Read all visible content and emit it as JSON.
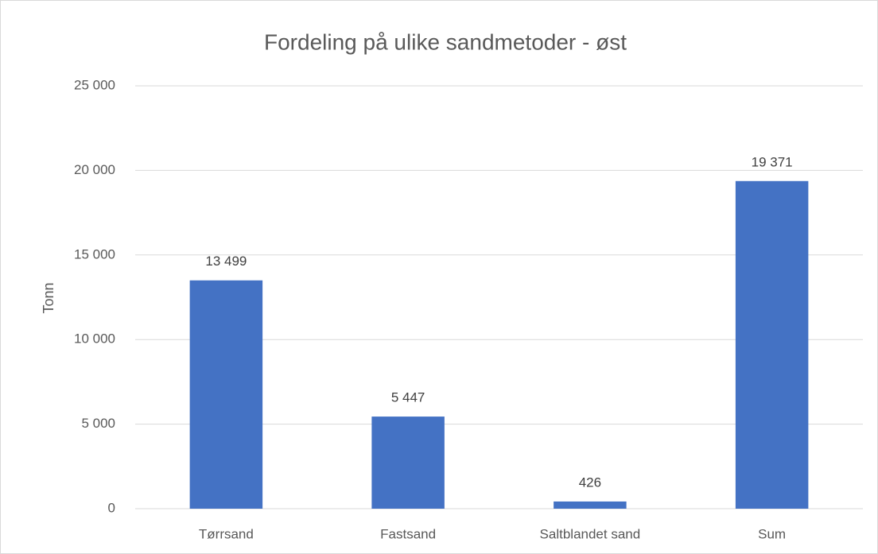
{
  "chart_data": {
    "type": "bar",
    "title": "Fordeling på ulike sandmetoder - øst",
    "ylabel": "Tonn",
    "categories": [
      "Tørrsand",
      "Fastsand",
      "Saltblandet sand",
      "Sum"
    ],
    "values": [
      13499,
      5447,
      426,
      19371
    ],
    "value_labels": [
      "13 499",
      "5 447",
      "426",
      "19 371"
    ],
    "color": "#4472c4",
    "ylim": [
      0,
      25000
    ],
    "yticks": [
      0,
      {
        "value": 5000,
        "label": "5 000"
      },
      {
        "value": 10000,
        "label": "10 000"
      },
      {
        "value": 15000,
        "label": "15 000"
      },
      {
        "value": 20000,
        "label": "20 000"
      },
      {
        "value": 25000,
        "label": "25 000"
      }
    ],
    "grid": true
  }
}
